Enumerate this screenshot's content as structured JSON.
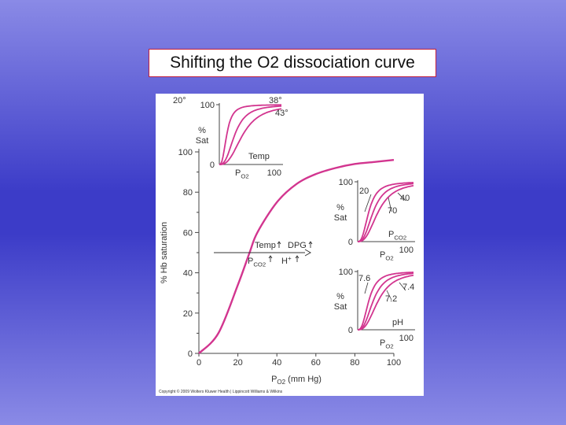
{
  "slide": {
    "title": "Shifting the O2 dissociation curve"
  },
  "chart_data": {
    "type": "line",
    "main": {
      "ylabel": "% Hb saturation",
      "xlabel": "P",
      "xlabel_sub": "O2",
      "xlabel_unit": "(mm Hg)",
      "xlim": [
        0,
        100
      ],
      "ylim": [
        0,
        100
      ],
      "xticks": [
        "0",
        "20",
        "40",
        "60",
        "80",
        "100"
      ],
      "yticks": [
        "0",
        "20",
        "40",
        "60",
        "80",
        "100"
      ],
      "series": [
        {
          "x": [
            0,
            10,
            20,
            26,
            30,
            40,
            50,
            60,
            70,
            80,
            90,
            100
          ],
          "y": [
            0,
            10,
            34,
            50,
            60,
            75,
            84,
            89,
            92,
            94,
            95,
            96
          ]
        }
      ],
      "shift_annotation": {
        "line1": [
          "Temp",
          "DPG"
        ],
        "line2_sub": "CO2",
        "line2_p": "P",
        "line2_h": "H",
        "arrow": "right"
      }
    },
    "insets": [
      {
        "ylabel": "% Sat",
        "y_top_tick": "100",
        "y_bottom_tick": "0",
        "xlabel": "P",
        "xlabel_sub": "O2",
        "x_right_tick": "100",
        "parameter_label": "Temp",
        "series": [
          {
            "name": "20°",
            "p50": 12
          },
          {
            "name": "38°",
            "p50": 25
          },
          {
            "name": "43°",
            "p50": 38
          }
        ]
      },
      {
        "ylabel": "% Sat",
        "y_top_tick": "100",
        "y_bottom_tick": "0",
        "xlabel": "P",
        "xlabel_sub": "O2",
        "x_right_tick": "100",
        "parameter_label": "P",
        "parameter_sub": "CO2",
        "series": [
          {
            "name": "20",
            "p50": 20
          },
          {
            "name": "40",
            "p50": 28
          },
          {
            "name": "70",
            "p50": 37
          }
        ]
      },
      {
        "ylabel": "% Sat",
        "y_top_tick": "100",
        "y_bottom_tick": "0",
        "xlabel": "P",
        "xlabel_sub": "O2",
        "x_right_tick": "100",
        "parameter_label": "pH",
        "series": [
          {
            "name": "7.6",
            "p50": 20
          },
          {
            "name": "7.4",
            "p50": 28
          },
          {
            "name": "7.2",
            "p50": 37
          }
        ]
      }
    ],
    "copyright": "Copyright © 2009 Wolters Kluwer Health | Lippincott Williams & Wilkins",
    "colors": {
      "curve": "#d2358f",
      "axis": "#444444"
    }
  }
}
